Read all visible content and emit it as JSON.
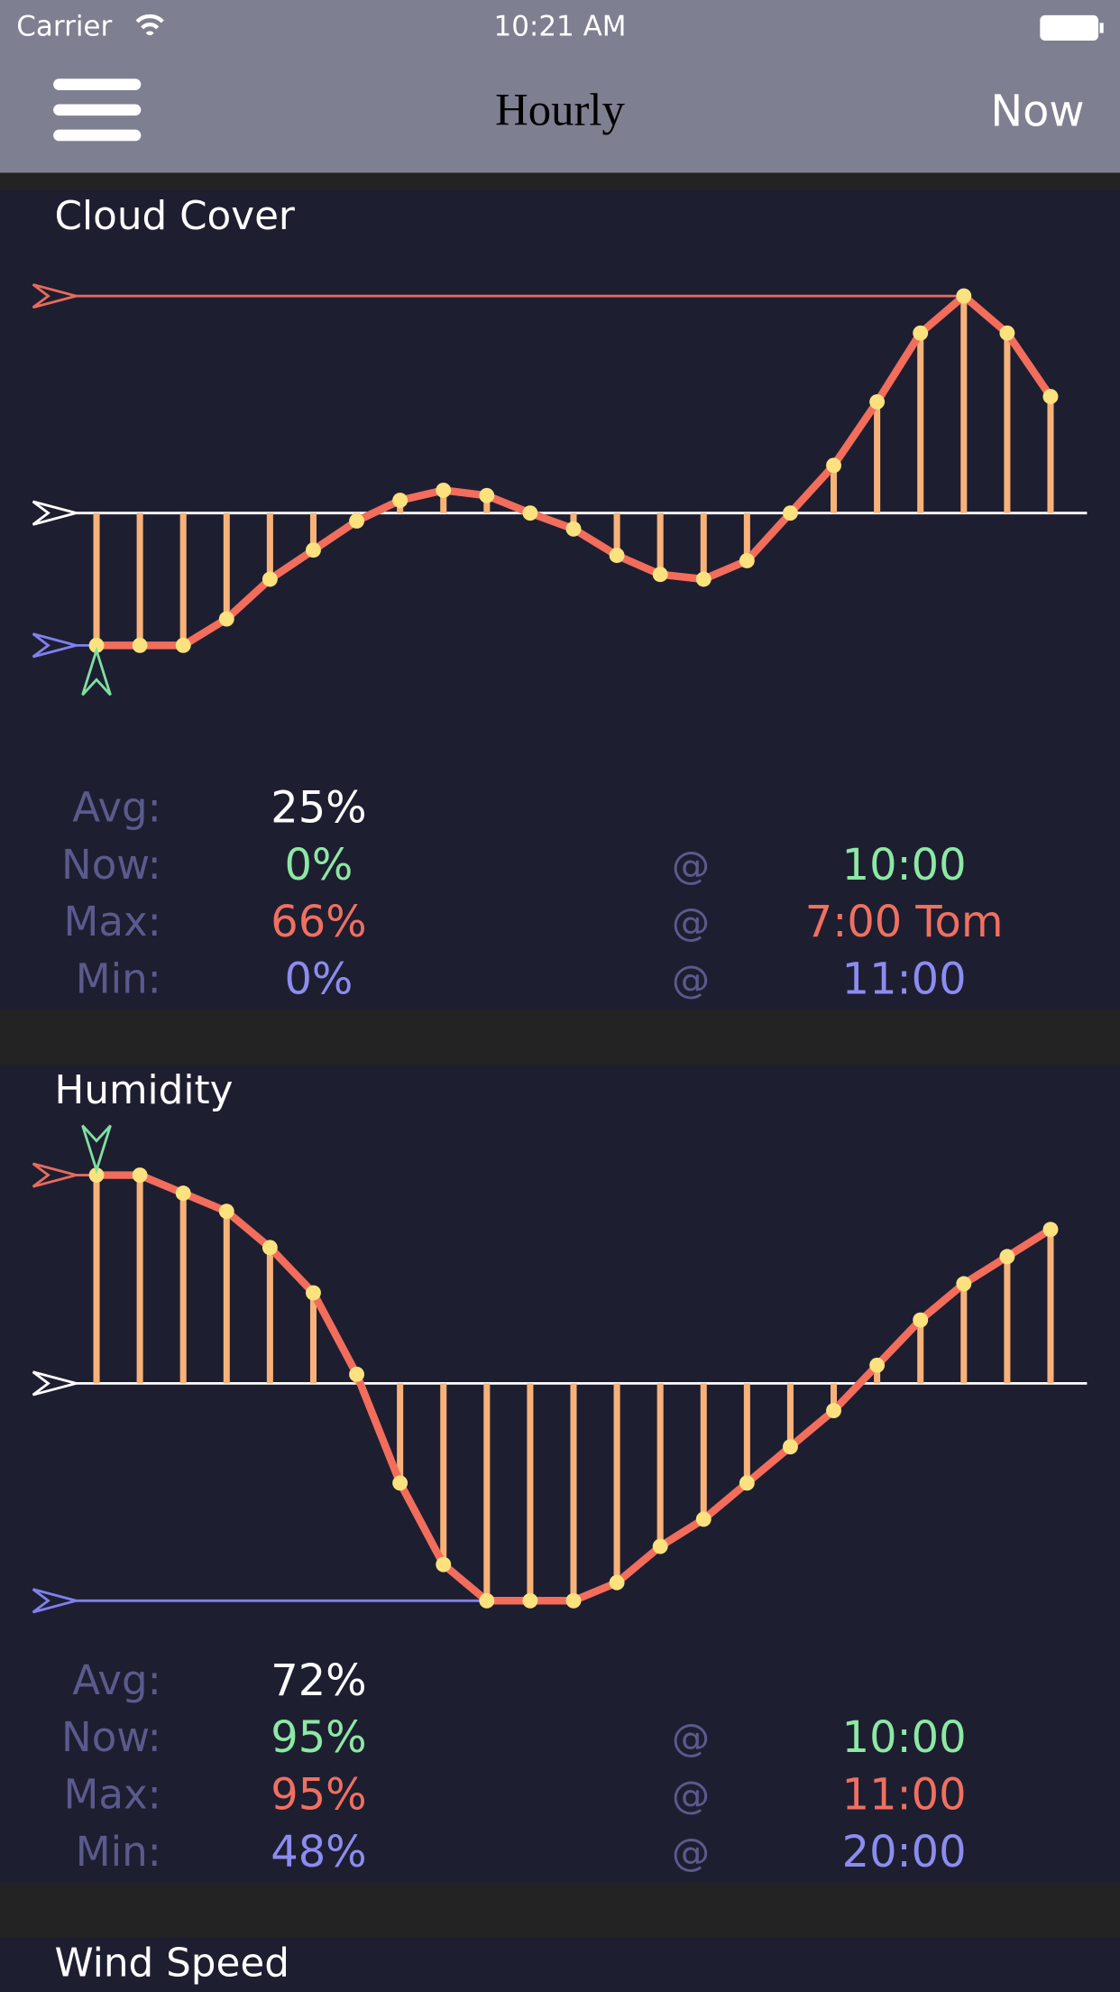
{
  "status_bar": {
    "carrier": "Carrier",
    "time": "10:21 AM"
  },
  "nav": {
    "title": "Hourly",
    "right_button": "Now"
  },
  "panels": [
    {
      "title": "Cloud Cover",
      "chart_data": {
        "type": "line",
        "values": [
          0,
          0,
          0,
          5,
          12.5,
          18,
          23.5,
          27.4,
          29.3,
          28.3,
          25,
          22,
          17,
          13.4,
          12.5,
          16,
          25,
          34,
          46,
          59,
          66,
          59,
          47
        ],
        "ylim": [
          0,
          66
        ],
        "avg_line": 25
      },
      "stats": [
        {
          "label": "Avg:",
          "value": "25%"
        },
        {
          "label": "Now:",
          "value": "0%",
          "at": "@",
          "time": "10:00"
        },
        {
          "label": "Max:",
          "value": "66%",
          "at": "@",
          "time": "7:00 Tom"
        },
        {
          "label": "Min:",
          "value": "0%",
          "at": "@",
          "time": "11:00"
        }
      ]
    },
    {
      "title": "Humidity",
      "chart_data": {
        "type": "line",
        "values": [
          95,
          95,
          93,
          91,
          87,
          82,
          73,
          61,
          52,
          48,
          48,
          48,
          50,
          54,
          57,
          61,
          65,
          69,
          74,
          79,
          83,
          86,
          89
        ],
        "ylim": [
          48,
          95
        ],
        "avg_line": 72
      },
      "stats": [
        {
          "label": "Avg:",
          "value": "72%"
        },
        {
          "label": "Now:",
          "value": "95%",
          "at": "@",
          "time": "10:00"
        },
        {
          "label": "Max:",
          "value": "95%",
          "at": "@",
          "time": "11:00"
        },
        {
          "label": "Min:",
          "value": "48%",
          "at": "@",
          "time": "20:00"
        }
      ]
    },
    {
      "title": "Wind Speed"
    }
  ]
}
